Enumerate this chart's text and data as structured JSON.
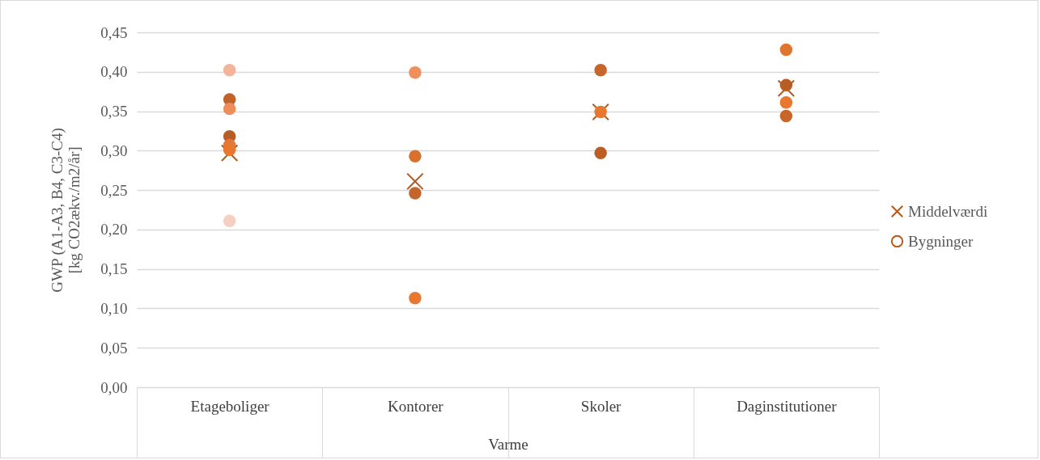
{
  "chart_data": {
    "type": "scatter",
    "ylabel": "GWP (A1-A3, B4, C3-C4)\n[kg CO2ækv./m2/år]",
    "xlabel": "Varme",
    "categories": [
      "Etageboliger",
      "Kontorer",
      "Skoler",
      "Daginstitutioner"
    ],
    "series": [
      {
        "name": "Middelværdi",
        "marker": "cross",
        "color": "#b35a1f",
        "x": [
          "Etageboliger",
          "Kontorer",
          "Skoler",
          "Daginstitutioner"
        ],
        "values": [
          0.297,
          0.261,
          0.349,
          0.379
        ]
      },
      {
        "name": "Bygninger",
        "marker": "circle",
        "color": "#c0622a",
        "x": [
          "Etageboliger",
          "Etageboliger",
          "Etageboliger",
          "Etageboliger",
          "Etageboliger",
          "Etageboliger",
          "Etageboliger",
          "Kontorer",
          "Kontorer",
          "Kontorer",
          "Kontorer",
          "Skoler",
          "Skoler",
          "Skoler",
          "Daginstitutioner",
          "Daginstitutioner",
          "Daginstitutioner",
          "Daginstitutioner"
        ],
        "values": [
          0.402,
          0.365,
          0.353,
          0.318,
          0.307,
          0.301,
          0.211,
          0.399,
          0.293,
          0.246,
          0.113,
          0.402,
          0.349,
          0.297,
          0.428,
          0.383,
          0.361,
          0.344
        ],
        "colors": [
          "#f4b49a",
          "#c0622a",
          "#ee8c5a",
          "#b85d26",
          "#e07a3c",
          "#e8772f",
          "#f5d0c2",
          "#ee8f5c",
          "#d9712e",
          "#c4652b",
          "#e8772f",
          "#c8652a",
          "#e8772f",
          "#bb5d24",
          "#e0752f",
          "#b85d26",
          "#e8772f",
          "#c8652a"
        ]
      }
    ],
    "ylim": [
      0,
      0.45
    ],
    "yticks": [
      {
        "value": 0,
        "label": "0,00"
      },
      {
        "value": 0.05,
        "label": "0,05"
      },
      {
        "value": 0.1,
        "label": "0,10"
      },
      {
        "value": 0.15,
        "label": "0,15"
      },
      {
        "value": 0.2,
        "label": "0,20"
      },
      {
        "value": 0.25,
        "label": "0,25"
      },
      {
        "value": 0.3,
        "label": "0,30"
      },
      {
        "value": 0.35,
        "label": "0,35"
      },
      {
        "value": 0.4,
        "label": "0,40"
      },
      {
        "value": 0.45,
        "label": "0,45"
      }
    ],
    "grid": "y",
    "legend": "right"
  }
}
